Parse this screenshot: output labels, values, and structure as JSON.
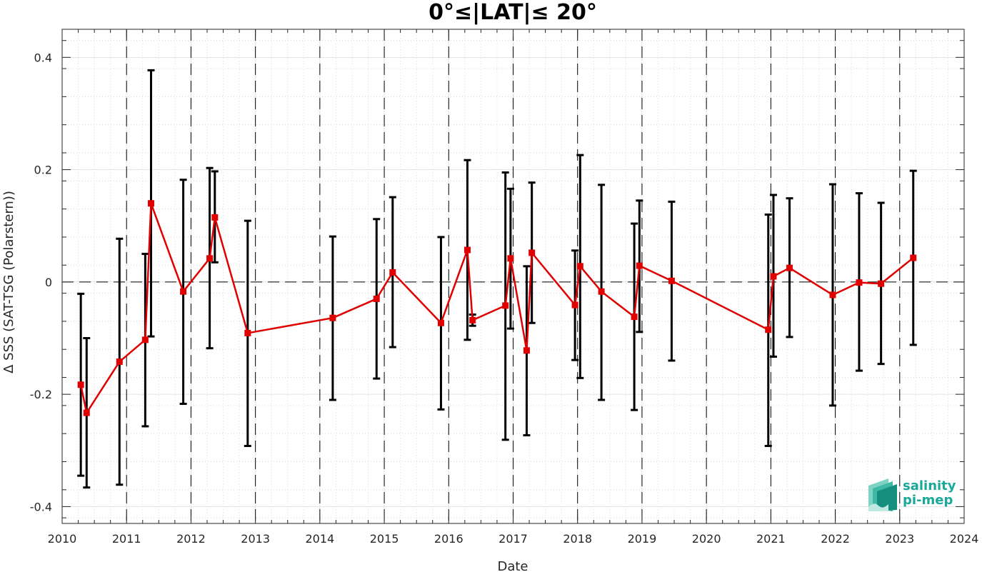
{
  "chart_data": {
    "type": "line",
    "title": "0°≤|LAT|≤ 20°",
    "xlabel": "Date",
    "ylabel": "Δ SSS (SAT-TSG (Polarstern))",
    "xlim": [
      2010,
      2024
    ],
    "ylim": [
      -0.43,
      0.45
    ],
    "x_ticks": [
      2010,
      2011,
      2012,
      2013,
      2014,
      2015,
      2016,
      2017,
      2018,
      2019,
      2020,
      2021,
      2022,
      2023,
      2024
    ],
    "x_tick_labels": [
      "2010",
      "2011",
      "2012",
      "2013",
      "2014",
      "2015",
      "2016",
      "2017",
      "2018",
      "2019",
      "2020",
      "2021",
      "2022",
      "2023",
      "2024"
    ],
    "y_ticks": [
      -0.4,
      -0.2,
      0,
      0.2,
      0.4
    ],
    "y_tick_labels": [
      "-0.4",
      "-0.2",
      "0",
      "0.2",
      "0.4"
    ],
    "grid": true,
    "minor_grid": true,
    "year_boundaries_dashed": true,
    "zero_line_dashed": true,
    "series": [
      {
        "color": "#e00000",
        "marker": "square",
        "errorbar_color": "#000000",
        "points": [
          {
            "x": 2010.29,
            "y": -0.183,
            "lo": -0.345,
            "hi": -0.021
          },
          {
            "x": 2010.38,
            "y": -0.233,
            "lo": -0.366,
            "hi": -0.1
          },
          {
            "x": 2010.89,
            "y": -0.142,
            "lo": -0.361,
            "hi": 0.077
          },
          {
            "x": 2011.29,
            "y": -0.103,
            "lo": -0.257,
            "hi": 0.05
          },
          {
            "x": 2011.38,
            "y": 0.14,
            "lo": -0.097,
            "hi": 0.377
          },
          {
            "x": 2011.88,
            "y": -0.017,
            "lo": -0.217,
            "hi": 0.182
          },
          {
            "x": 2012.29,
            "y": 0.042,
            "lo": -0.118,
            "hi": 0.203
          },
          {
            "x": 2012.37,
            "y": 0.115,
            "lo": 0.035,
            "hi": 0.197
          },
          {
            "x": 2012.88,
            "y": -0.091,
            "lo": -0.292,
            "hi": 0.109
          },
          {
            "x": 2014.2,
            "y": -0.064,
            "lo": -0.21,
            "hi": 0.081
          },
          {
            "x": 2014.88,
            "y": -0.03,
            "lo": -0.172,
            "hi": 0.112
          },
          {
            "x": 2015.13,
            "y": 0.017,
            "lo": -0.116,
            "hi": 0.151
          },
          {
            "x": 2015.88,
            "y": -0.073,
            "lo": -0.227,
            "hi": 0.08
          },
          {
            "x": 2016.29,
            "y": 0.057,
            "lo": -0.103,
            "hi": 0.217
          },
          {
            "x": 2016.37,
            "y": -0.068,
            "lo": -0.078,
            "hi": -0.058
          },
          {
            "x": 2016.88,
            "y": -0.042,
            "lo": -0.281,
            "hi": 0.195
          },
          {
            "x": 2016.96,
            "y": 0.042,
            "lo": -0.083,
            "hi": 0.166
          },
          {
            "x": 2017.21,
            "y": -0.122,
            "lo": -0.273,
            "hi": 0.028
          },
          {
            "x": 2017.29,
            "y": 0.052,
            "lo": -0.073,
            "hi": 0.177
          },
          {
            "x": 2017.96,
            "y": -0.041,
            "lo": -0.139,
            "hi": 0.056
          },
          {
            "x": 2018.04,
            "y": 0.028,
            "lo": -0.171,
            "hi": 0.226
          },
          {
            "x": 2018.37,
            "y": -0.017,
            "lo": -0.21,
            "hi": 0.173
          },
          {
            "x": 2018.88,
            "y": -0.062,
            "lo": -0.228,
            "hi": 0.104
          },
          {
            "x": 2018.96,
            "y": 0.029,
            "lo": -0.089,
            "hi": 0.145
          },
          {
            "x": 2019.46,
            "y": 0.002,
            "lo": -0.14,
            "hi": 0.143
          },
          {
            "x": 2020.96,
            "y": -0.085,
            "lo": -0.292,
            "hi": 0.12
          },
          {
            "x": 2021.04,
            "y": 0.01,
            "lo": -0.133,
            "hi": 0.155
          },
          {
            "x": 2021.29,
            "y": 0.025,
            "lo": -0.098,
            "hi": 0.149
          },
          {
            "x": 2021.96,
            "y": -0.023,
            "lo": -0.22,
            "hi": 0.174
          },
          {
            "x": 2022.37,
            "y": -0.001,
            "lo": -0.158,
            "hi": 0.158
          },
          {
            "x": 2022.71,
            "y": -0.003,
            "lo": -0.146,
            "hi": 0.141
          },
          {
            "x": 2023.21,
            "y": 0.043,
            "lo": -0.112,
            "hi": 0.198
          }
        ]
      }
    ]
  },
  "logo": {
    "line1": "salinity",
    "line2": "pi-mep",
    "color": "#1aa89a"
  }
}
